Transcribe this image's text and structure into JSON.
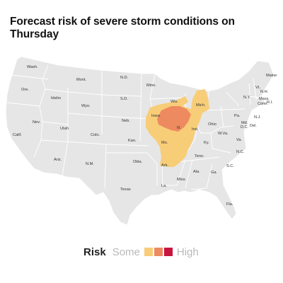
{
  "title": "Forecast risk of severe storm conditions on Thursday",
  "colors": {
    "land": "#e6e6e6",
    "border": "#ffffff",
    "risk_1": "#f8cd78",
    "risk_2": "#ee8a5f",
    "risk_3": "#c8153e"
  },
  "states": {
    "wash": "Wash.",
    "ore": "Ore.",
    "idaho": "Idaho",
    "mont": "Mont.",
    "nev": "Nev.",
    "calif": "Calif.",
    "utah": "Utah",
    "wyo": "Wyo.",
    "colo": "Colo.",
    "ariz": "Ariz.",
    "nm": "N.M.",
    "nd": "N.D.",
    "sd": "S.D.",
    "neb": "Neb.",
    "kan": "Kan.",
    "okla": "Okla.",
    "texas": "Texas",
    "minn": "Minn.",
    "iowa": "Iowa",
    "mo": "Mo.",
    "ark": "Ark.",
    "la": "La.",
    "wis": "Wis.",
    "ill": "Ill.",
    "mich": "Mich.",
    "ind": "Ind.",
    "ohio": "Ohio",
    "ky": "Ky.",
    "tenn": "Tenn.",
    "miss": "Miss.",
    "ala": "Ala.",
    "ga": "Ga.",
    "fla": "Fla.",
    "sc": "S.C.",
    "nc": "N.C.",
    "va": "Va.",
    "wva": "W.Va.",
    "pa": "Pa.",
    "ny": "N.Y.",
    "vt": "Vt.",
    "nh": "N.H.",
    "maine": "Maine",
    "mass": "Mass.",
    "conn": "Conn.",
    "ri": "R.I.",
    "nj": "N.J.",
    "del": "Del.",
    "md": "Md.",
    "dc": "D.C."
  },
  "legend": {
    "title": "Risk",
    "low_label": "Some",
    "high_label": "High",
    "levels": [
      "risk_1",
      "risk_2",
      "risk_3"
    ]
  }
}
